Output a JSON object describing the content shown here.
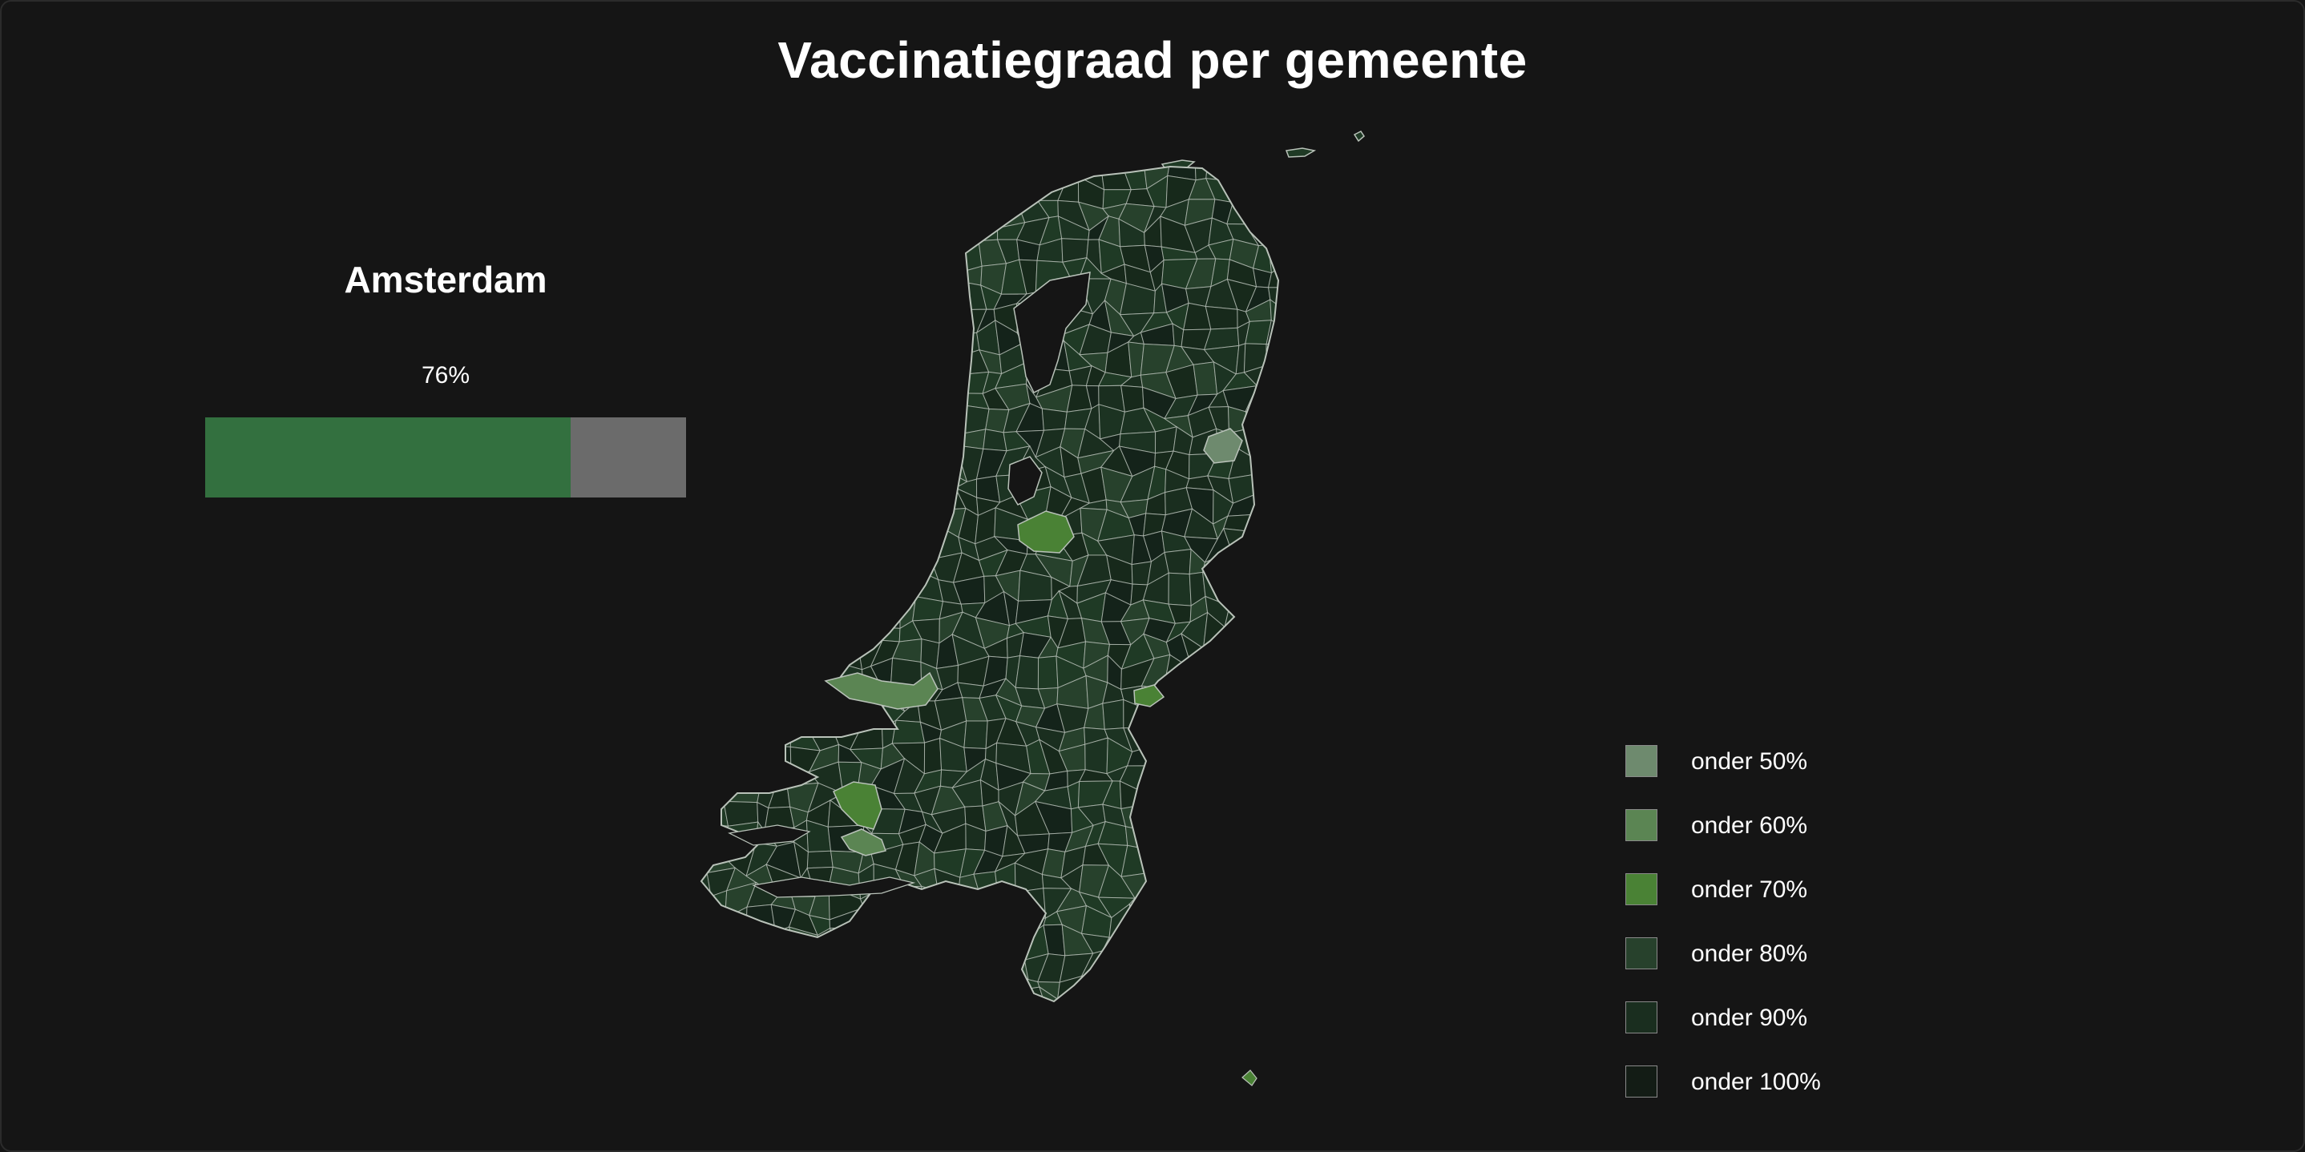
{
  "title": "Vaccinatiegraad per gemeente",
  "selected": {
    "name": "Amsterdam",
    "percent_label": "76%",
    "percent": 76,
    "fill_color": "#33703f",
    "track_color": "#6b6b6b"
  },
  "legend": [
    {
      "label": "onder 50%",
      "color": "#6e8a6e"
    },
    {
      "label": "onder 60%",
      "color": "#5b8553"
    },
    {
      "label": "onder 70%",
      "color": "#4a8235"
    },
    {
      "label": "onder 80%",
      "color": "#27412c"
    },
    {
      "label": "onder 90%",
      "color": "#1a2e1f"
    },
    {
      "label": "onder 100%",
      "color": "#131c15"
    }
  ],
  "map": {
    "region": "Nederland",
    "border_color": "#b9c2b9",
    "base_color": "#18301d"
  }
}
